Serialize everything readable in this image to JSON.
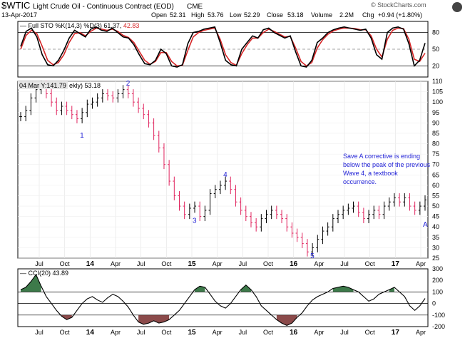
{
  "header": {
    "symbol": "$WTIC",
    "name": "Light Crude Oil - Continuous Contract (EOD)",
    "exchange": "CME",
    "date": "13-Apr-2017",
    "credit": "© StockCharts.com",
    "quote": {
      "open_label": "Open",
      "open": "52.31",
      "high_label": "High",
      "high": "53.76",
      "low_label": "Low",
      "low": "52.29",
      "close_label": "Close",
      "close": "53.18",
      "volume_label": "Volume",
      "volume": "2.2M",
      "chg_label": "Chg",
      "chg": "+0.94 (+1.80%)"
    }
  },
  "chart_data": [
    {
      "type": "line",
      "panel": "stochastic",
      "title": "Full STO %K(14,3) %D(3) 61.37, 42.83",
      "legend_text": "Full STO %K(14,3) %D(3) 61.37,",
      "legend_value2": "42.83",
      "ylim": [
        0,
        100
      ],
      "yticks": [
        20,
        50,
        80
      ],
      "series": [
        {
          "name": "%K",
          "color": "#000000",
          "values": [
            55,
            82,
            88,
            72,
            40,
            22,
            20,
            30,
            48,
            70,
            84,
            78,
            72,
            86,
            90,
            84,
            82,
            88,
            80,
            72,
            70,
            58,
            40,
            24,
            22,
            30,
            50,
            42,
            20,
            18,
            22,
            60,
            80,
            82,
            86,
            88,
            90,
            62,
            30,
            22,
            20,
            50,
            62,
            74,
            70,
            85,
            88,
            80,
            75,
            70,
            74,
            45,
            20,
            18,
            30,
            62,
            70,
            80,
            85,
            88,
            90,
            88,
            86,
            84,
            86,
            70,
            40,
            32,
            80,
            88,
            90,
            86,
            60,
            20,
            30,
            61
          ]
        },
        {
          "name": "%D",
          "color": "#d62728",
          "values": [
            50,
            75,
            84,
            78,
            55,
            30,
            22,
            26,
            40,
            62,
            78,
            80,
            74,
            82,
            88,
            86,
            84,
            86,
            82,
            75,
            71,
            62,
            46,
            30,
            23,
            28,
            44,
            44,
            28,
            20,
            21,
            48,
            72,
            80,
            84,
            86,
            88,
            68,
            40,
            26,
            21,
            42,
            58,
            70,
            70,
            80,
            86,
            82,
            77,
            72,
            73,
            52,
            28,
            20,
            26,
            52,
            67,
            77,
            83,
            86,
            88,
            88,
            87,
            85,
            85,
            74,
            50,
            36,
            68,
            84,
            88,
            87,
            68,
            32,
            28,
            43
          ]
        }
      ],
      "reference_lines": [
        20,
        50,
        80
      ],
      "fill_color": "#b8b8b8"
    },
    {
      "type": "ohlc",
      "panel": "price",
      "title": "Weekly",
      "hover_label": "04 Mar Y:141.79",
      "label_suffix": "ekly) 53.18",
      "ylim": [
        25,
        110
      ],
      "yticks": [
        25,
        30,
        35,
        40,
        45,
        50,
        55,
        60,
        65,
        70,
        75,
        80,
        85,
        90,
        95,
        100,
        105,
        110
      ],
      "x_labels": [
        "Jul",
        "Oct",
        "14",
        "Apr",
        "Jul",
        "Oct",
        "15",
        "Apr",
        "Jul",
        "Oct",
        "16",
        "Apr",
        "Jul",
        "Oct",
        "17",
        "Apr"
      ],
      "up_color": "#000000",
      "down_color": "#e0245e",
      "close_series": [
        93,
        96,
        102,
        106,
        108,
        104,
        100,
        96,
        98,
        96,
        94,
        92,
        95,
        99,
        100,
        102,
        104,
        103,
        102,
        104,
        106,
        104,
        100,
        97,
        94,
        90,
        84,
        78,
        70,
        62,
        55,
        50,
        46,
        49,
        50,
        45,
        48,
        56,
        58,
        60,
        62,
        58,
        52,
        48,
        45,
        42,
        40,
        44,
        46,
        48,
        46,
        44,
        40,
        37,
        35,
        32,
        28,
        30,
        34,
        38,
        40,
        44,
        46,
        48,
        49,
        50,
        47,
        44,
        46,
        48,
        46,
        50,
        52,
        54,
        52,
        54,
        50,
        48,
        50,
        53
      ],
      "annotations": [
        {
          "label": "1",
          "at_index": 12,
          "value": 83
        },
        {
          "label": "2",
          "at_index": 21,
          "value": 108
        },
        {
          "label": "3",
          "at_index": 34,
          "value": 42
        },
        {
          "label": "4",
          "at_index": 40,
          "value": 64
        },
        {
          "label": "5",
          "at_index": 57,
          "value": 25
        },
        {
          "label": "A",
          "at_index": 79,
          "value": 40
        }
      ],
      "comment": [
        "Save A corrective is ending",
        "below the peak of the previous",
        "Wave 4, a textbook",
        "occurrence."
      ],
      "annotation_color": "#1f1fd6"
    },
    {
      "type": "line",
      "panel": "cci",
      "title": "CCI(20) 43.89",
      "ylim": [
        -200,
        300
      ],
      "yticks": [
        -200,
        -100,
        0,
        100,
        200,
        300
      ],
      "reference_lines": [
        -100,
        0,
        100
      ],
      "values": [
        120,
        140,
        190,
        250,
        150,
        60,
        0,
        -60,
        -110,
        -140,
        -120,
        -60,
        0,
        40,
        60,
        30,
        10,
        50,
        80,
        60,
        20,
        -30,
        -100,
        -160,
        -180,
        -170,
        -150,
        -170,
        -160,
        -140,
        -100,
        -60,
        0,
        60,
        120,
        150,
        140,
        80,
        20,
        -20,
        -40,
        0,
        60,
        120,
        160,
        120,
        60,
        -20,
        -60,
        -100,
        -140,
        -170,
        -190,
        -170,
        -120,
        -80,
        -20,
        30,
        60,
        80,
        100,
        130,
        140,
        150,
        140,
        120,
        100,
        60,
        20,
        40,
        80,
        100,
        120,
        140,
        100,
        60,
        -20,
        -60,
        -20,
        44
      ],
      "positive_fill": "#3d7a4a",
      "negative_fill": "#8b4a4a"
    }
  ]
}
